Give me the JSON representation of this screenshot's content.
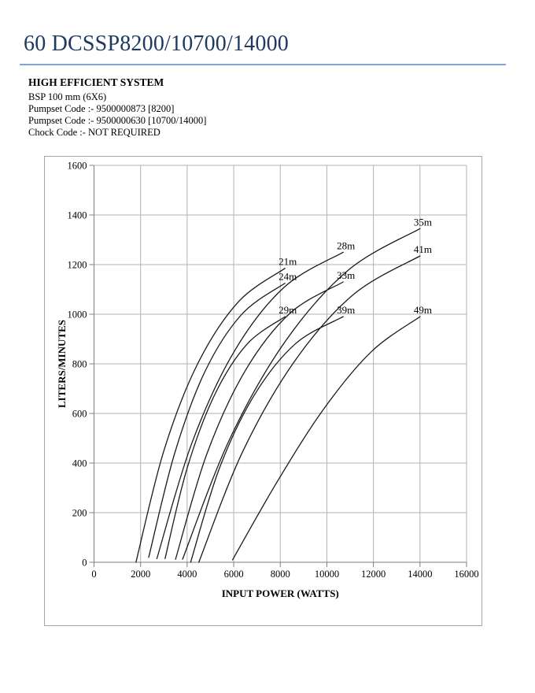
{
  "page": {
    "title": "60 DCSSP8200/10700/14000"
  },
  "info": {
    "heading": "HIGH EFFICIENT SYSTEM",
    "lines": [
      "BSP 100 mm (6X6)",
      "Pumpset Code :- 9500000873 [8200]",
      "Pumpset Code :- 9500000630 [10700/14000]",
      "Chock Code :-  NOT REQUIRED"
    ]
  },
  "colors": {
    "title_text": "#1f3a60",
    "title_rule": "#7da7dc",
    "grid": "#b3b3b3",
    "axis": "#7f7f7f",
    "curve": "#1a1a1a",
    "frame": "#a6a6a6"
  },
  "chart_data": {
    "type": "line",
    "title": "",
    "xlabel": "INPUT POWER (WATTS)",
    "ylabel": "LITERS/MINUTES",
    "xlim": [
      0,
      16000
    ],
    "ylim": [
      0,
      1600
    ],
    "x_ticks": [
      0,
      2000,
      4000,
      6000,
      8000,
      10000,
      12000,
      14000,
      16000
    ],
    "y_ticks": [
      0,
      200,
      400,
      600,
      800,
      1000,
      1200,
      1400,
      1600
    ],
    "grid": true,
    "legend_position": "inline-end-labels",
    "series": [
      {
        "name": "21m",
        "points": [
          [
            1800,
            0
          ],
          [
            3000,
            450
          ],
          [
            4450,
            800
          ],
          [
            6200,
            1050
          ],
          [
            8200,
            1185
          ]
        ]
      },
      {
        "name": "24m",
        "points": [
          [
            2350,
            20
          ],
          [
            3450,
            435
          ],
          [
            4770,
            770
          ],
          [
            6350,
            1000
          ],
          [
            8200,
            1125
          ]
        ]
      },
      {
        "name": "28m",
        "points": [
          [
            2700,
            15
          ],
          [
            4200,
            480
          ],
          [
            6020,
            850
          ],
          [
            8180,
            1110
          ],
          [
            10700,
            1250
          ]
        ]
      },
      {
        "name": "29m",
        "points": [
          [
            3050,
            15
          ],
          [
            4000,
            380
          ],
          [
            5180,
            675
          ],
          [
            6580,
            880
          ],
          [
            8200,
            990
          ]
        ]
      },
      {
        "name": "33m",
        "points": [
          [
            3500,
            12
          ],
          [
            4840,
            435
          ],
          [
            6480,
            770
          ],
          [
            8430,
            1005
          ],
          [
            10700,
            1130
          ]
        ]
      },
      {
        "name": "35m",
        "points": [
          [
            3800,
            12
          ],
          [
            5820,
            495
          ],
          [
            8210,
            890
          ],
          [
            10950,
            1180
          ],
          [
            14000,
            1345
          ]
        ]
      },
      {
        "name": "39m",
        "points": [
          [
            4150,
            0
          ],
          [
            5370,
            375
          ],
          [
            6860,
            670
          ],
          [
            8640,
            880
          ],
          [
            10700,
            990
          ]
        ]
      },
      {
        "name": "41m",
        "points": [
          [
            4500,
            0
          ],
          [
            6380,
            445
          ],
          [
            8610,
            810
          ],
          [
            11150,
            1080
          ],
          [
            14000,
            1235
          ]
        ]
      },
      {
        "name": "49m",
        "points": [
          [
            5950,
            10
          ],
          [
            7900,
            330
          ],
          [
            9880,
            620
          ],
          [
            11920,
            850
          ],
          [
            14000,
            990
          ]
        ]
      }
    ]
  }
}
